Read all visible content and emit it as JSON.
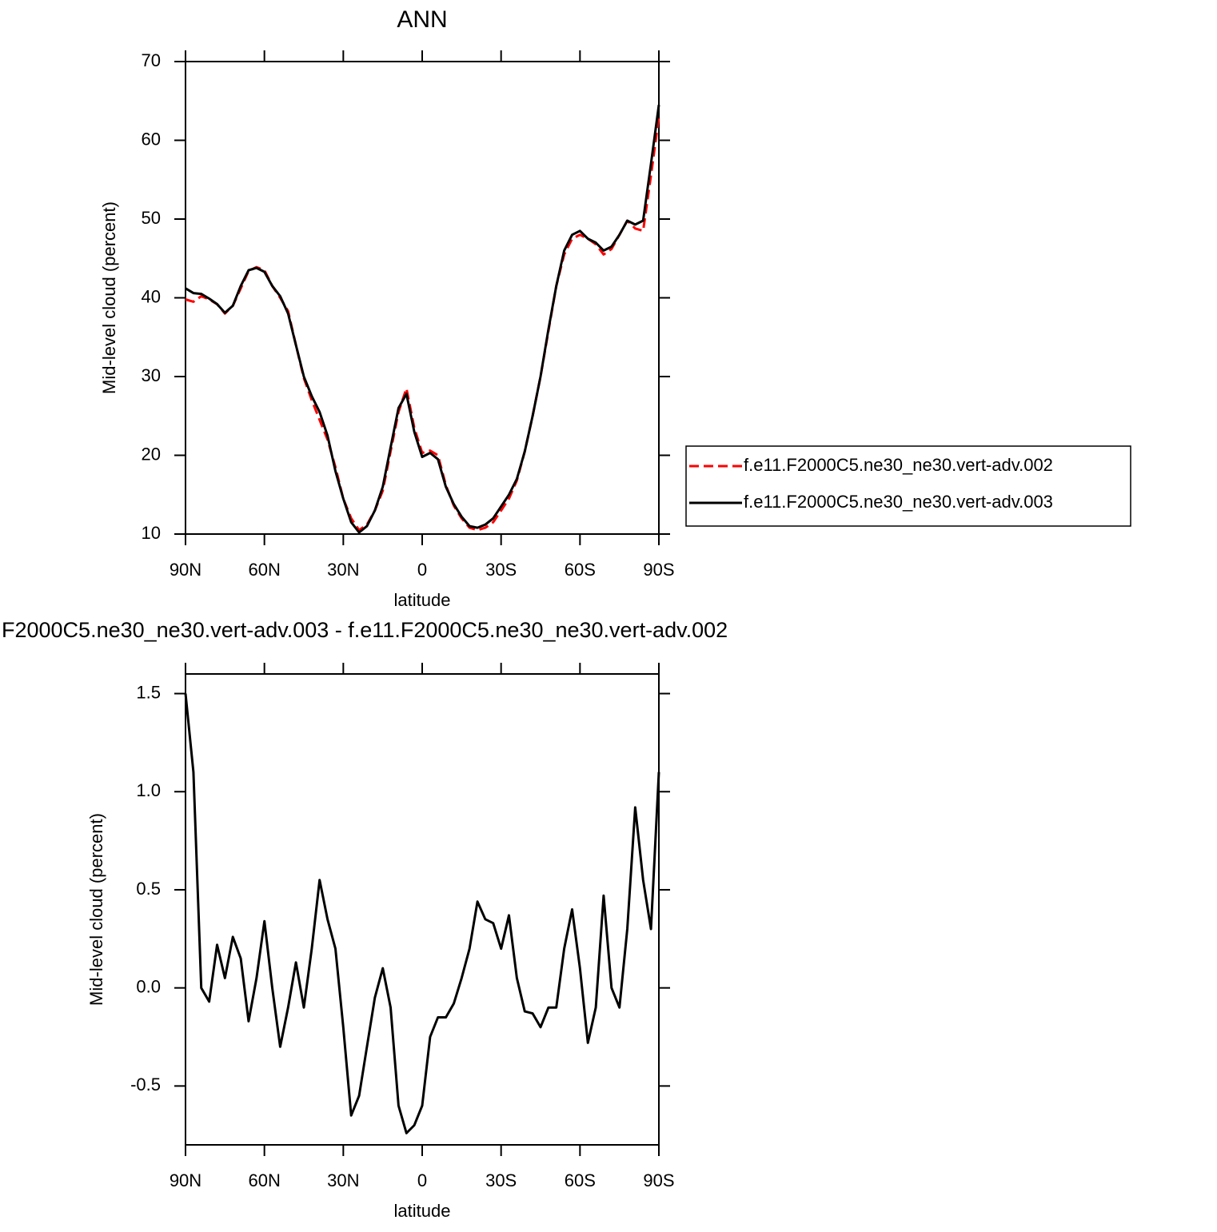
{
  "chart_data": [
    {
      "type": "line",
      "title": "ANN",
      "xlabel": "latitude",
      "ylabel": "Mid-level cloud (percent)",
      "x": [
        90,
        87,
        84,
        81,
        78,
        75,
        72,
        69,
        66,
        63,
        60,
        57,
        54,
        51,
        48,
        45,
        42,
        39,
        36,
        33,
        30,
        27,
        24,
        21,
        18,
        15,
        12,
        9,
        6,
        3,
        0,
        -3,
        -6,
        -9,
        -12,
        -15,
        -18,
        -21,
        -24,
        -27,
        -30,
        -33,
        -36,
        -39,
        -42,
        -45,
        -48,
        -51,
        -54,
        -57,
        -60,
        -63,
        -66,
        -69,
        -72,
        -75,
        -78,
        -81,
        -84,
        -87,
        -90
      ],
      "series": [
        {
          "name": "f.e11.F2000C5.ne30_ne30.vert-adv.002",
          "color": "#ff0000",
          "line_style": "dashed",
          "values": [
            39.8,
            39.5,
            40.2,
            39.8,
            39.2,
            38.0,
            39.0,
            41.2,
            43.4,
            43.9,
            43.5,
            41.5,
            40.0,
            38.3,
            34.0,
            29.8,
            27.0,
            24.5,
            22.0,
            18.5,
            14.5,
            12.0,
            10.5,
            11.2,
            13.0,
            15.5,
            20.5,
            25.5,
            28.5,
            23.5,
            20.3,
            20.6,
            20.0,
            16.2,
            13.6,
            12.0,
            10.8,
            10.5,
            10.8,
            11.5,
            13.0,
            14.5,
            16.8,
            20.5,
            25.0,
            30.0,
            35.8,
            41.5,
            45.5,
            47.5,
            48.0,
            47.5,
            46.8,
            45.5,
            46.2,
            48.0,
            49.8,
            48.8,
            48.5,
            55.5,
            63.0
          ]
        },
        {
          "name": "f.e11.F2000C5.ne30_ne30.vert-adv.003",
          "color": "#000000",
          "line_style": "solid",
          "values": [
            41.2,
            40.6,
            40.5,
            39.9,
            39.2,
            38.1,
            39.0,
            41.5,
            43.5,
            43.8,
            43.3,
            41.5,
            40.2,
            38.0,
            34.0,
            30.0,
            27.5,
            25.5,
            22.5,
            18.0,
            14.5,
            11.5,
            10.2,
            11.0,
            13.0,
            16.0,
            21.0,
            26.0,
            27.8,
            23.0,
            19.8,
            20.3,
            19.5,
            16.0,
            13.8,
            12.2,
            11.0,
            10.8,
            11.2,
            12.0,
            13.5,
            15.0,
            17.0,
            20.5,
            25.0,
            30.0,
            36.0,
            41.5,
            46.0,
            48.0,
            48.5,
            47.5,
            47.0,
            46.0,
            46.5,
            48.0,
            49.8,
            49.3,
            49.8,
            57.0,
            64.5
          ]
        }
      ],
      "xlim": [
        90,
        -90
      ],
      "xticks": [
        {
          "value": 90,
          "label": "90N"
        },
        {
          "value": 60,
          "label": "60N"
        },
        {
          "value": 30,
          "label": "30N"
        },
        0,
        {
          "value": -30,
          "label": "30S"
        },
        {
          "value": -60,
          "label": "60S"
        },
        {
          "value": -90,
          "label": "90S"
        }
      ],
      "ylim": [
        10,
        70
      ],
      "yticks": [
        10,
        20,
        30,
        40,
        50,
        60,
        70
      ],
      "legend": "right"
    },
    {
      "type": "line",
      "title": "F2000C5.ne30_ne30.vert-adv.003 - f.e11.F2000C5.ne30_ne30.vert-adv.002",
      "xlabel": "latitude",
      "ylabel": "Mid-level cloud (percent)",
      "x": [
        90,
        87,
        84,
        81,
        78,
        75,
        72,
        69,
        66,
        63,
        60,
        57,
        54,
        51,
        48,
        45,
        42,
        39,
        36,
        33,
        30,
        27,
        24,
        21,
        18,
        15,
        12,
        9,
        6,
        3,
        0,
        -3,
        -6,
        -9,
        -12,
        -15,
        -18,
        -21,
        -24,
        -27,
        -30,
        -33,
        -36,
        -39,
        -42,
        -45,
        -48,
        -51,
        -54,
        -57,
        -60,
        -63,
        -66,
        -69,
        -72,
        -75,
        -78,
        -81,
        -84,
        -87,
        -90
      ],
      "series": [
        {
          "color": "#000000",
          "values": [
            1.5,
            1.1,
            0.0,
            -0.07,
            0.22,
            0.05,
            0.26,
            0.15,
            -0.17,
            0.05,
            0.34,
            0.0,
            -0.3,
            -0.1,
            0.13,
            -0.1,
            0.2,
            0.55,
            0.35,
            0.2,
            -0.2,
            -0.65,
            -0.55,
            -0.3,
            -0.05,
            0.1,
            -0.1,
            -0.6,
            -0.74,
            -0.7,
            -0.6,
            -0.25,
            -0.15,
            -0.15,
            -0.08,
            0.05,
            0.2,
            0.44,
            0.35,
            0.33,
            0.2,
            0.37,
            0.05,
            -0.12,
            -0.13,
            -0.2,
            -0.1,
            -0.1,
            0.2,
            0.4,
            0.1,
            -0.28,
            -0.1,
            0.47,
            0.0,
            -0.1,
            0.3,
            0.92,
            0.55,
            0.3,
            1.1
          ]
        }
      ],
      "xlim": [
        90,
        -90
      ],
      "xticks": [
        {
          "value": 90,
          "label": "90N"
        },
        {
          "value": 60,
          "label": "60N"
        },
        {
          "value": 30,
          "label": "30N"
        },
        0,
        {
          "value": -30,
          "label": "30S"
        },
        {
          "value": -60,
          "label": "60S"
        },
        {
          "value": -90,
          "label": "90S"
        }
      ],
      "ylim": [
        -0.8,
        1.6
      ],
      "yticks": [
        -0.5,
        {
          "value": 0,
          "label": "0.0"
        },
        0.5,
        {
          "value": 1,
          "label": "1.0"
        },
        1.5
      ]
    }
  ]
}
